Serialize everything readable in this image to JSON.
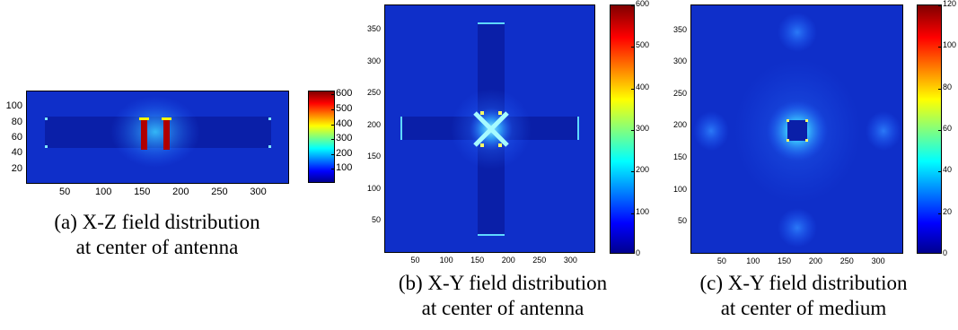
{
  "chart_data": [
    {
      "type": "heatmap",
      "caption_line1": "(a) X-Z field distribution",
      "caption_line2": "at center of antenna",
      "xlim": [
        0,
        340
      ],
      "ylim": [
        0,
        120
      ],
      "x_ticks": [
        "50",
        "100",
        "150",
        "200",
        "250",
        "300"
      ],
      "x_tick_values": [
        50,
        100,
        150,
        200,
        250,
        300
      ],
      "y_ticks": [
        "100",
        "80",
        "60",
        "40",
        "20"
      ],
      "y_tick_values": [
        100,
        80,
        60,
        40,
        20
      ],
      "colorbar_ticks": [
        "600",
        "500",
        "400",
        "300",
        "200",
        "100"
      ],
      "colorbar_values": [
        600,
        500,
        400,
        300,
        200,
        100
      ],
      "colorbar_range": [
        0,
        620
      ],
      "colormap": "jet"
    },
    {
      "type": "heatmap",
      "caption_line1": "(b) X-Y field distribution",
      "caption_line2": "at center of antenna",
      "xlim": [
        0,
        340
      ],
      "ylim": [
        0,
        390
      ],
      "x_ticks": [
        "50",
        "100",
        "150",
        "200",
        "250",
        "300"
      ],
      "x_tick_values": [
        50,
        100,
        150,
        200,
        250,
        300
      ],
      "y_ticks": [
        "350",
        "300",
        "250",
        "200",
        "150",
        "100",
        "50"
      ],
      "y_tick_values": [
        350,
        300,
        250,
        200,
        150,
        100,
        50
      ],
      "colorbar_ticks": [
        "600",
        "500",
        "400",
        "300",
        "200",
        "100",
        "0"
      ],
      "colorbar_values": [
        600,
        500,
        400,
        300,
        200,
        100,
        0
      ],
      "colorbar_range": [
        0,
        600
      ],
      "colormap": "jet"
    },
    {
      "type": "heatmap",
      "caption_line1": "(c) X-Y field distribution",
      "caption_line2": "at center of medium",
      "xlim": [
        0,
        340
      ],
      "ylim": [
        0,
        390
      ],
      "x_ticks": [
        "50",
        "100",
        "150",
        "200",
        "250",
        "300"
      ],
      "x_tick_values": [
        50,
        100,
        150,
        200,
        250,
        300
      ],
      "y_ticks": [
        "350",
        "300",
        "250",
        "200",
        "150",
        "100",
        "50"
      ],
      "y_tick_values": [
        350,
        300,
        250,
        200,
        150,
        100,
        50
      ],
      "colorbar_ticks": [
        "120",
        "100",
        "80",
        "60",
        "40",
        "20",
        "0"
      ],
      "colorbar_values": [
        120,
        100,
        80,
        60,
        40,
        20,
        0
      ],
      "colorbar_range": [
        0,
        120
      ],
      "colormap": "jet"
    }
  ]
}
